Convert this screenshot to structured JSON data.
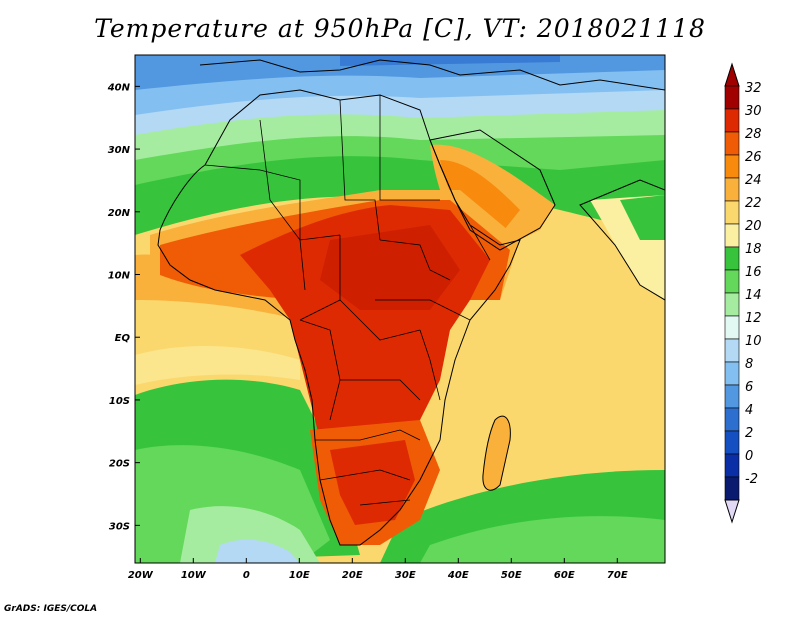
{
  "title": "Temperature at 950hPa [C], VT: 2018021118",
  "credit": "GrADS: IGES/COLA",
  "axes": {
    "lon_labels": [
      "20W",
      "10W",
      "0",
      "10E",
      "20E",
      "30E",
      "40E",
      "50E",
      "60E",
      "70E"
    ],
    "lon_values": [
      -20,
      -10,
      0,
      10,
      20,
      30,
      40,
      50,
      60,
      70
    ],
    "lat_labels": [
      "40N",
      "30N",
      "20N",
      "10N",
      "EQ",
      "10S",
      "20S",
      "30S"
    ],
    "lat_values": [
      40,
      30,
      20,
      10,
      0,
      -10,
      -20,
      -30
    ],
    "lon_range": [
      -21,
      79
    ],
    "lat_range": [
      -36,
      45
    ]
  },
  "colorbar": {
    "labels": [
      "32",
      "30",
      "28",
      "26",
      "24",
      "22",
      "20",
      "18",
      "16",
      "14",
      "12",
      "10",
      "8",
      "6",
      "4",
      "2",
      "0",
      "-2"
    ],
    "colors": [
      "#a00000",
      "#de2a02",
      "#f05c06",
      "#f88b0e",
      "#f9b13c",
      "#fbd86e",
      "#fbf0a2",
      "#37c43c",
      "#63d85a",
      "#a6eca0",
      "#e2f9f3",
      "#b3d9f5",
      "#83bff0",
      "#5298e0",
      "#2c6fcf",
      "#1550c2",
      "#0a2ea5",
      "#0a1a6f"
    ],
    "top_cap_color": "#a00000",
    "bottom_cap_color": "#e2d9f7"
  },
  "map": {
    "ocean_base_color": "#fbd86e",
    "land_hot_color": "#de2a02",
    "land_warm_color": "#f05c06"
  }
}
